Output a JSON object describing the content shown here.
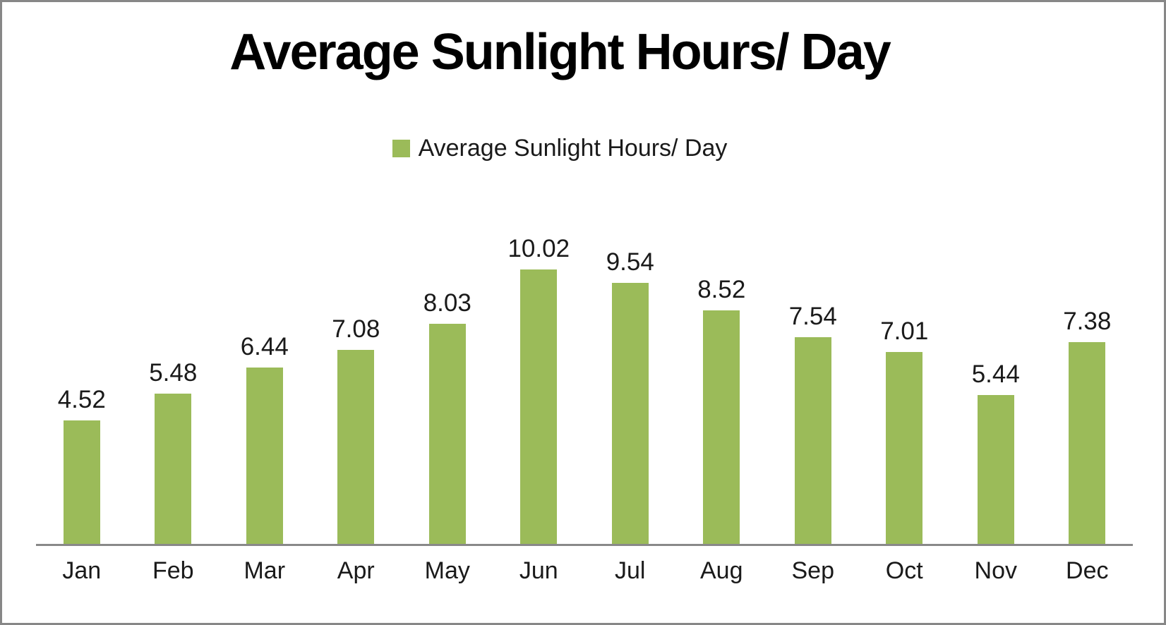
{
  "chart_data": {
    "type": "bar",
    "title": "Average Sunlight Hours/ Day",
    "legend_label": "Average Sunlight Hours/ Day",
    "legend_position": "top-center",
    "categories": [
      "Jan",
      "Feb",
      "Mar",
      "Apr",
      "May",
      "Jun",
      "Jul",
      "Aug",
      "Sep",
      "Oct",
      "Nov",
      "Dec"
    ],
    "values": [
      4.52,
      5.48,
      6.44,
      7.08,
      8.03,
      10.02,
      9.54,
      8.52,
      7.54,
      7.01,
      5.44,
      7.38
    ],
    "data_labels": [
      "4.52",
      "5.48",
      "6.44",
      "7.08",
      "8.03",
      "10.02",
      "9.54",
      "8.52",
      "7.54",
      "7.01",
      "5.44",
      "7.38"
    ],
    "xlabel": "",
    "ylabel": "",
    "ylim": [
      0,
      10.02
    ],
    "grid": false,
    "bar_color": "#9BBB59",
    "axis_line_color": "#898989",
    "text_color": "#1a1a1a",
    "title_color": "#000000"
  }
}
